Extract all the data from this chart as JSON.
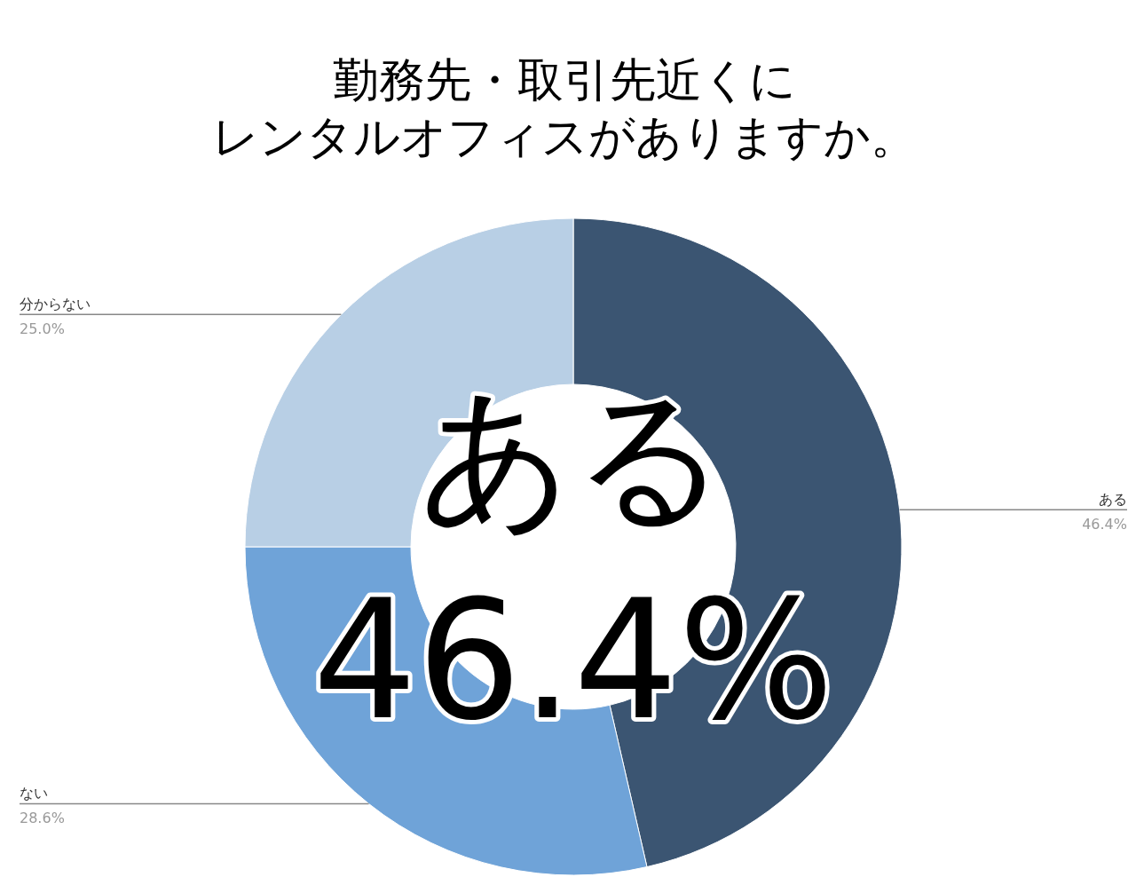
{
  "chart_data": {
    "type": "donut",
    "title": "勤務先・取引先近くにレンタルオフィスがありますか。",
    "categories": [
      "ある",
      "ない",
      "分からない"
    ],
    "values": [
      46.4,
      28.6,
      25.0
    ],
    "colors": [
      "#3b5572",
      "#6fa3d8",
      "#b8cfe5"
    ],
    "value_labels": [
      "46.4%",
      "28.6%",
      "25.0%"
    ],
    "annotations": [
      "ある",
      "46.4%"
    ],
    "legend": false
  }
}
